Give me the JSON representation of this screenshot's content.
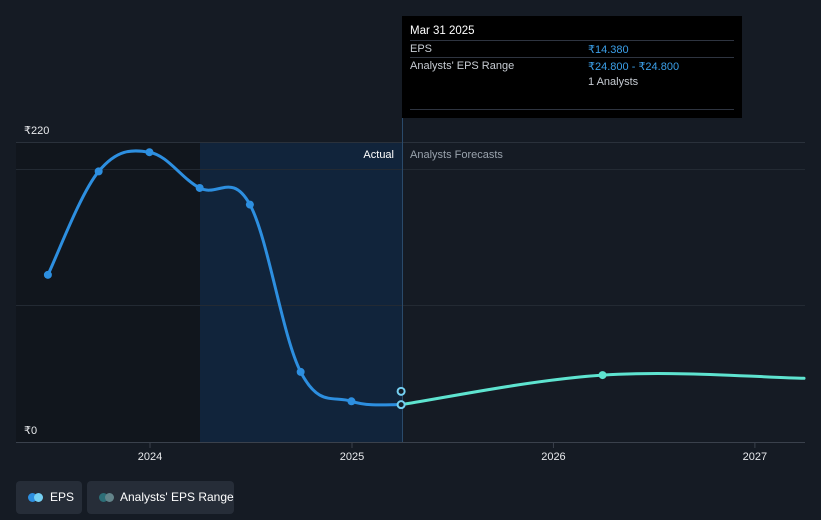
{
  "chart_data": {
    "type": "line",
    "title": "",
    "xlabel": "",
    "ylabel": "",
    "x_ticks": [
      "2024",
      "2025",
      "2026",
      "2027"
    ],
    "ylim": [
      0,
      220
    ],
    "y_tick_labels": [
      "₹220",
      "₹0"
    ],
    "region_labels": {
      "actual": "Actual",
      "forecast": "Analysts Forecasts"
    },
    "series": [
      {
        "name": "EPS",
        "color": "#2d8fe0",
        "points": [
          {
            "x": "2023-06-30",
            "y": 116
          },
          {
            "x": "2023-09-30",
            "y": 197
          },
          {
            "x": "2023-12-31",
            "y": 212
          },
          {
            "x": "2024-03-31",
            "y": 184
          },
          {
            "x": "2024-06-30",
            "y": 171
          },
          {
            "x": "2024-09-30",
            "y": 40
          },
          {
            "x": "2024-12-31",
            "y": 17
          },
          {
            "x": "2025-03-31",
            "y": 14.38
          }
        ]
      },
      {
        "name": "Analysts' EPS Range",
        "color": "#5ee4d0",
        "points": [
          {
            "x": "2025-03-31",
            "y": 14.38
          },
          {
            "x": "2026-03-31",
            "y": 37.5
          },
          {
            "x": "2027-03-31",
            "y": 35
          }
        ]
      }
    ],
    "highlight_point": {
      "x": "2025-03-31",
      "y": 24.8
    },
    "grid": true,
    "legend_position": "bottom-left"
  },
  "tooltip": {
    "date": "Mar 31 2025",
    "eps_label": "EPS",
    "eps_value": "₹14.380",
    "range_label": "Analysts' EPS Range",
    "range_low": "₹24.800",
    "range_sep": " - ",
    "range_high": "₹24.800",
    "analysts": "1 Analysts"
  },
  "legend": {
    "eps": {
      "label": "EPS",
      "dot_color_left": "#2d8fe0",
      "dot_color_right": "#75d0f2"
    },
    "range": {
      "label": "Analysts' EPS Range",
      "dot_color_left": "#2c6e77",
      "dot_color_right": "#63848a"
    }
  },
  "colors": {
    "background": "#151b24",
    "past_shade": "#11161d",
    "actual_shade": "#11243b",
    "grid": "#2a313b"
  }
}
